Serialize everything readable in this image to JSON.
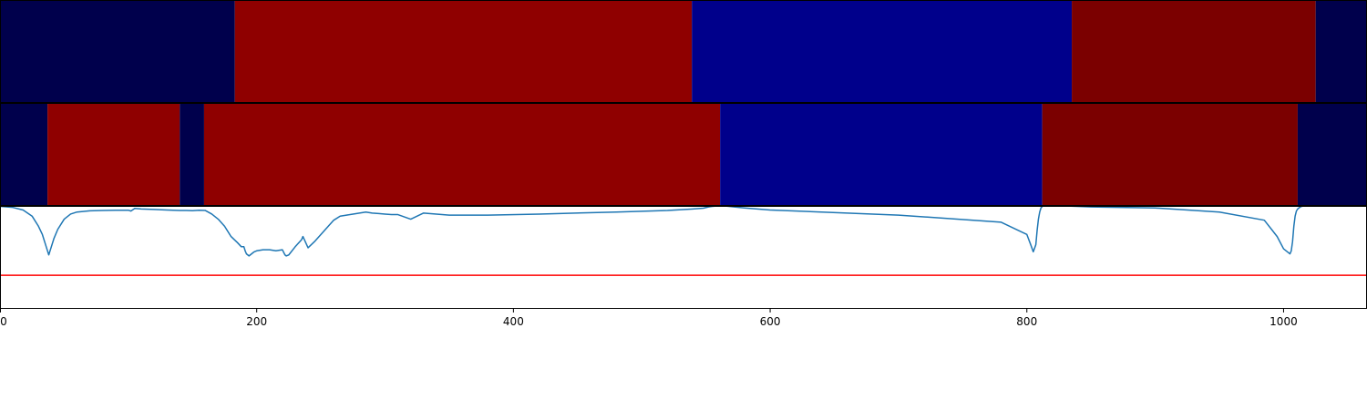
{
  "chart_data": {
    "type": "heatmap",
    "xlim": [
      0,
      1065
    ],
    "xticks": [
      0,
      200,
      400,
      600,
      800,
      1000
    ],
    "xtick_labels": [
      "0",
      "200",
      "400",
      "600",
      "800",
      "1000"
    ],
    "rows": [
      {
        "segments": [
          {
            "start": 0,
            "end": 183,
            "color": "#00004c"
          },
          {
            "start": 183,
            "end": 539,
            "color": "#8f0000"
          },
          {
            "start": 539,
            "end": 835,
            "color": "#00008b"
          },
          {
            "start": 835,
            "end": 1025,
            "color": "#7b0000"
          },
          {
            "start": 1025,
            "end": 1065,
            "color": "#00004c"
          }
        ]
      },
      {
        "segments": [
          {
            "start": 0,
            "end": 37,
            "color": "#00004c"
          },
          {
            "start": 37,
            "end": 140,
            "color": "#8f0000"
          },
          {
            "start": 140,
            "end": 159,
            "color": "#00004c"
          },
          {
            "start": 159,
            "end": 561,
            "color": "#8f0000"
          },
          {
            "start": 561,
            "end": 812,
            "color": "#00008b"
          },
          {
            "start": 812,
            "end": 1011,
            "color": "#7b0000"
          },
          {
            "start": 1011,
            "end": 1065,
            "color": "#00004c"
          }
        ]
      }
    ],
    "line_panel": {
      "ylim": [
        0,
        1
      ],
      "threshold": 0.32,
      "threshold_color": "#ff0000",
      "line_color": "#1f77b4",
      "series": {
        "x": [
          0,
          10,
          18,
          25,
          30,
          33,
          36,
          38,
          40,
          42,
          45,
          50,
          55,
          60,
          70,
          80,
          90,
          100,
          102,
          105,
          110,
          120,
          130,
          140,
          145,
          150,
          155,
          160,
          165,
          170,
          175,
          180,
          185,
          188,
          190,
          191,
          192,
          193,
          194,
          195,
          196,
          197,
          198,
          200,
          205,
          210,
          215,
          220,
          222,
          223,
          225,
          230,
          235,
          236,
          240,
          245,
          250,
          255,
          260,
          265,
          270,
          275,
          280,
          285,
          290,
          295,
          300,
          305,
          310,
          320,
          330,
          350,
          380,
          420,
          480,
          520,
          540,
          548,
          552,
          555,
          557,
          558,
          559,
          560,
          561,
          562,
          564,
          567,
          572,
          580,
          600,
          700,
          780,
          800,
          803,
          805,
          807,
          808,
          809,
          810,
          811,
          812,
          813,
          814,
          816,
          820,
          830,
          850,
          900,
          950,
          985,
          995,
          1000,
          1003,
          1005,
          1006,
          1007,
          1008,
          1009,
          1010,
          1011,
          1012,
          1013,
          1014,
          1016,
          1020,
          1030,
          1045,
          1065
        ],
        "y": [
          0.995,
          0.985,
          0.96,
          0.9,
          0.8,
          0.72,
          0.6,
          0.52,
          0.6,
          0.68,
          0.77,
          0.87,
          0.92,
          0.94,
          0.952,
          0.955,
          0.958,
          0.958,
          0.95,
          0.975,
          0.97,
          0.965,
          0.96,
          0.955,
          0.955,
          0.953,
          0.958,
          0.955,
          0.92,
          0.87,
          0.8,
          0.7,
          0.64,
          0.6,
          0.6,
          0.56,
          0.53,
          0.52,
          0.51,
          0.52,
          0.53,
          0.54,
          0.55,
          0.56,
          0.57,
          0.57,
          0.56,
          0.57,
          0.52,
          0.51,
          0.52,
          0.6,
          0.67,
          0.7,
          0.59,
          0.65,
          0.72,
          0.79,
          0.86,
          0.9,
          0.91,
          0.92,
          0.93,
          0.94,
          0.93,
          0.925,
          0.92,
          0.915,
          0.915,
          0.87,
          0.93,
          0.91,
          0.91,
          0.92,
          0.94,
          0.955,
          0.97,
          0.978,
          0.99,
          0.995,
          0.998,
          0.999,
          1.0,
          1.0,
          1.0,
          1.0,
          1.0,
          0.997,
          0.99,
          0.98,
          0.96,
          0.91,
          0.84,
          0.72,
          0.62,
          0.55,
          0.62,
          0.76,
          0.87,
          0.94,
          0.98,
          0.995,
          1.0,
          1.0,
          1.0,
          1.0,
          1.0,
          0.99,
          0.98,
          0.94,
          0.86,
          0.7,
          0.58,
          0.55,
          0.53,
          0.56,
          0.65,
          0.8,
          0.9,
          0.95,
          0.97,
          0.98,
          0.99,
          0.995,
          1.0,
          1.0,
          1.0,
          1.0,
          1.0
        ]
      }
    }
  }
}
